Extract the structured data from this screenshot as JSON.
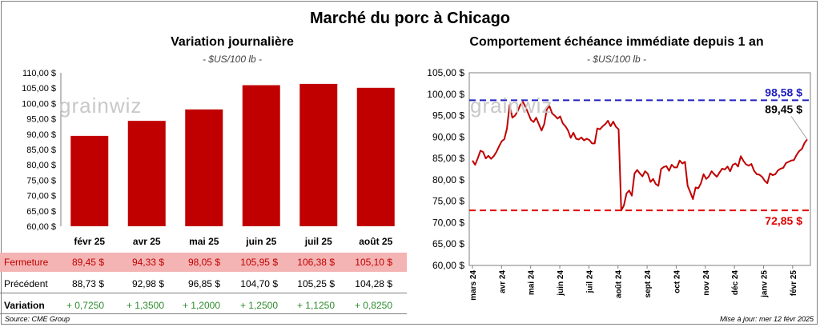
{
  "header": {
    "title": "Marché du porc à Chicago",
    "left_title": "Variation journalière",
    "left_unit": "- $US/100 lb -",
    "right_title": "Comportement échéance immédiate depuis 1 an",
    "right_unit": "- $US/100 lb -",
    "watermark": "grainwiz"
  },
  "table": {
    "close_label": "Fermeture",
    "prev_label": "Précédent",
    "var_label": "Variation",
    "close": [
      "89,45 $",
      "94,33 $",
      "98,05 $",
      "105,95 $",
      "106,38 $",
      "105,10 $"
    ],
    "prev": [
      "88,73 $",
      "92,98 $",
      "96,85 $",
      "104,70 $",
      "105,25 $",
      "104,28 $"
    ],
    "var": [
      "+ 0,7250",
      "+ 1,3500",
      "+ 1,2000",
      "+ 1,2500",
      "+ 1,1250",
      "+ 0,8250"
    ]
  },
  "footer": {
    "source": "Source: CME Group",
    "updated": "Mise à jour: mer 12 févr 2025"
  },
  "colors": {
    "bar": "#c00000",
    "line": "#c00000",
    "high": "#1f1fbf",
    "low": "#e00000"
  },
  "chart_data": [
    {
      "type": "bar",
      "categories": [
        "févr 25",
        "avr 25",
        "mai 25",
        "juin 25",
        "juil 25",
        "août 25"
      ],
      "values": [
        89.45,
        94.33,
        98.05,
        105.95,
        106.38,
        105.1
      ],
      "ylim": [
        60,
        110
      ],
      "yticks": [
        "60,00 $",
        "65,00 $",
        "70,00 $",
        "75,00 $",
        "80,00 $",
        "85,00 $",
        "90,00 $",
        "95,00 $",
        "100,00 $",
        "105,00 $",
        "110,00 $"
      ],
      "grid": false
    },
    {
      "type": "line",
      "x_labels": [
        "mars 24",
        "avr 24",
        "mai 24",
        "juin 24",
        "juil 24",
        "août 24",
        "sept 24",
        "oct 24",
        "nov 24",
        "déc 24",
        "janv 25",
        "févr 25"
      ],
      "ylim": [
        60,
        105
      ],
      "yticks": [
        "60,00 $",
        "65,00 $",
        "70,00 $",
        "75,00 $",
        "80,00 $",
        "85,00 $",
        "90,00 $",
        "95,00 $",
        "100,00 $",
        "105,00 $"
      ],
      "high_value": 98.58,
      "high_label": "98,58 $",
      "low_value": 72.85,
      "low_label": "72,85 $",
      "last_value": 89.45,
      "last_label": "89,45 $",
      "values": [
        84.5,
        83.5,
        85,
        86.8,
        86.5,
        85,
        85.6,
        84.9,
        85.5,
        86.5,
        87.8,
        89,
        89.5,
        92,
        97.5,
        94.5,
        95,
        96,
        97.5,
        98.2,
        97,
        95.5,
        94,
        93.5,
        94.5,
        93,
        91.5,
        93,
        96.5,
        97.2,
        95.5,
        95,
        94.3,
        94.8,
        93.2,
        92.5,
        91.5,
        89.8,
        91,
        89.6,
        89.4,
        89.9,
        89.2,
        89.6,
        89.3,
        88.5,
        88.5,
        92,
        91.8,
        92.5,
        93,
        93.8,
        92.5,
        93.6,
        92.4,
        91.8,
        72.85,
        74,
        76.8,
        77.5,
        76.3,
        81.5,
        82.3,
        81.5,
        80.8,
        82,
        81.4,
        79.5,
        80.2,
        79,
        78.6,
        82.5,
        83,
        83.2,
        82.1,
        83.5,
        82.9,
        82.9,
        84.5,
        83.8,
        84.2,
        78.6,
        77.1,
        75.5,
        78.2,
        78,
        79.2,
        81.3,
        80.2,
        80.8,
        82,
        81.3,
        80.7,
        81.7,
        82.6,
        82.4,
        83.1,
        82,
        83.5,
        83.8,
        83.1,
        85.5,
        84.4,
        83.6,
        83.3,
        83.7,
        82.1,
        81.3,
        81.2,
        80.7,
        79.8,
        79.2,
        81.5,
        81.1,
        81.3,
        82.2,
        82.6,
        82.8,
        83.9,
        84.2,
        84.5,
        84.6,
        85.8,
        86.7,
        87.2,
        88.6,
        89.45
      ],
      "grid": false
    }
  ]
}
